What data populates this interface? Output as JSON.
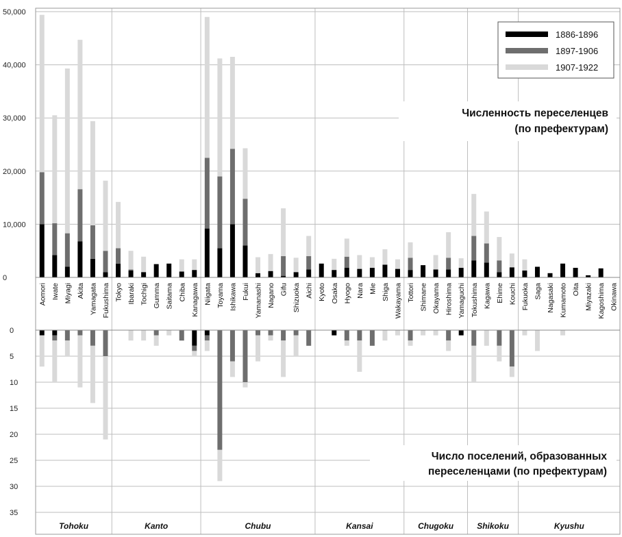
{
  "chart_data": {
    "type": "bar",
    "colors": {
      "s1886": "#000000",
      "s1897": "#6e6e6e",
      "s1907": "#d9d9d9"
    },
    "legend": {
      "position": "top-right",
      "labels": [
        "1886-1896",
        "1897-1906",
        "1907-1922"
      ]
    },
    "top_panel": {
      "title_lines": [
        "Численность переселенцев",
        "(по префектурам)"
      ],
      "ylim": [
        0,
        50000
      ],
      "yticks": [
        "50,000",
        "40,000",
        "30,000",
        "20,000",
        "10,000",
        "0"
      ],
      "ytick_values": [
        50000,
        40000,
        30000,
        20000,
        10000,
        0
      ]
    },
    "bottom_panel": {
      "title_lines": [
        "Число поселений, образованных",
        "переселенцами (по префектурам)"
      ],
      "ylim": [
        0,
        37
      ],
      "yticks": [
        "0",
        "5",
        "10",
        "15",
        "20",
        "25",
        "30",
        "35"
      ],
      "ytick_values": [
        0,
        5,
        10,
        15,
        20,
        25,
        30,
        35
      ]
    },
    "categories": [
      "Aomori",
      "Iwate",
      "Miyagi",
      "Akita",
      "Yamagata",
      "Fukushima",
      "Tokyo",
      "Ibaraki",
      "Tochigi",
      "Gumma",
      "Saitama",
      "Chiba",
      "Kanagawa",
      "Niigata",
      "Toyama",
      "Ishikawa",
      "Fukui",
      "Yamanashi",
      "Nagano",
      "Gifu",
      "Shizuoka",
      "Aichi",
      "Kyoto",
      "Osaka",
      "Hyogo",
      "Nara",
      "Mie",
      "Shiga",
      "Wakayama",
      "Tottori",
      "Shimane",
      "Okayama",
      "Hiroshima",
      "Yamaguchi",
      "Tokushima",
      "Kagawa",
      "Ehime",
      "Kouchi",
      "Fukuoka",
      "Saga",
      "Nagasaki",
      "Kumamoto",
      "Oita",
      "Miyazaki",
      "Kagoshima",
      "Okinawa"
    ],
    "regions": [
      {
        "name": "Tohoku",
        "from": 0,
        "to": 5
      },
      {
        "name": "Kanto",
        "from": 6,
        "to": 12
      },
      {
        "name": "Chubu",
        "from": 13,
        "to": 21
      },
      {
        "name": "Kansai",
        "from": 22,
        "to": 28
      },
      {
        "name": "Chugoku",
        "from": 29,
        "to": 33
      },
      {
        "name": "Shikoku",
        "from": 34,
        "to": 37
      },
      {
        "name": "Kyushu",
        "from": 38,
        "to": 45
      }
    ],
    "migrants": [
      {
        "name": "1886-1896",
        "values": [
          10000,
          4200,
          2000,
          6800,
          3500,
          1000,
          2600,
          1300,
          1000,
          2500,
          2600,
          1100,
          1400,
          9200,
          5500,
          10000,
          6000,
          800,
          1200,
          300,
          1000,
          1500,
          2600,
          1400,
          1800,
          1600,
          1800,
          2400,
          1600,
          1400,
          2300,
          1500,
          1500,
          1800,
          3200,
          2800,
          1000,
          1900,
          1300,
          2000,
          800,
          2600,
          1800,
          400,
          1700,
          0
        ]
      },
      {
        "name": "1897-1906",
        "values": [
          9800,
          6000,
          6300,
          9800,
          6300,
          4000,
          2900,
          200,
          0,
          0,
          0,
          0,
          0,
          13300,
          13500,
          14200,
          8800,
          0,
          0,
          3700,
          0,
          2500,
          0,
          0,
          2100,
          0,
          0,
          0,
          0,
          2300,
          0,
          0,
          2200,
          0,
          4600,
          3600,
          2200,
          0,
          0,
          0,
          0,
          0,
          0,
          0,
          0,
          0
        ]
      },
      {
        "name": "1907-1922",
        "values": [
          29600,
          20300,
          31000,
          28100,
          19600,
          13200,
          8700,
          3500,
          2900,
          0,
          0,
          2300,
          2000,
          26500,
          22200,
          17300,
          9500,
          3000,
          3200,
          9000,
          2700,
          3800,
          0,
          2100,
          3400,
          2600,
          2000,
          2900,
          1800,
          2900,
          0,
          2700,
          4800,
          1800,
          7900,
          6000,
          4400,
          2600,
          2100,
          0,
          0,
          0,
          0,
          0,
          0,
          0
        ]
      }
    ],
    "settlements": [
      {
        "name": "1886-1896",
        "values": [
          1,
          1,
          0,
          0,
          0,
          0,
          0,
          0,
          0,
          0,
          0,
          0,
          3,
          1,
          0,
          0,
          0,
          0,
          0,
          0,
          0,
          0,
          0,
          1,
          0,
          0,
          0,
          0,
          0,
          0,
          0,
          0,
          0,
          1,
          0,
          0,
          0,
          0,
          0,
          0,
          0,
          0,
          0,
          0,
          0,
          0
        ]
      },
      {
        "name": "1897-1906",
        "values": [
          0,
          1,
          2,
          1,
          3,
          5,
          0,
          0,
          0,
          1,
          0,
          2,
          1,
          1,
          23,
          6,
          10,
          1,
          1,
          2,
          1,
          3,
          0,
          0,
          2,
          2,
          3,
          0,
          0,
          2,
          0,
          0,
          2,
          0,
          3,
          0,
          3,
          7,
          0,
          0,
          0,
          0,
          0,
          0,
          0,
          0
        ]
      },
      {
        "name": "1907-1922",
        "values": [
          6,
          8,
          3,
          10,
          11,
          16,
          0,
          2,
          2,
          2,
          1,
          0,
          1,
          2,
          6,
          3,
          1,
          5,
          1,
          7,
          4,
          0,
          0,
          0,
          1,
          6,
          0,
          2,
          1,
          1,
          1,
          1,
          2,
          0,
          7,
          3,
          3,
          2,
          1,
          4,
          0,
          1,
          0,
          0,
          0,
          0
        ]
      }
    ]
  }
}
